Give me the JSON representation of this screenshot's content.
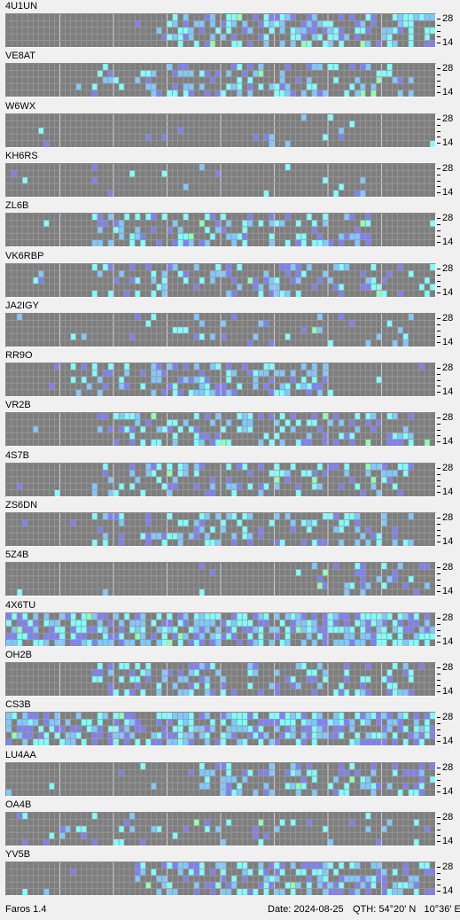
{
  "app": {
    "title": "Faros 1.4"
  },
  "status": {
    "date_label": "Date:",
    "date_value": "2024-08-25",
    "qth_label": "QTH:",
    "qth_value": "54°20' N   10°36' E"
  },
  "band_labels": {
    "top": "28",
    "bottom": "14"
  },
  "colors": {
    "grid_bg": "#7e7e7e",
    "grid_line": "#9a9a9a",
    "major_line": "#c8c8c8",
    "signal_weak": "#8080f0",
    "signal_mid": "#80c8ff",
    "signal_strong": "#80ffff",
    "signal_peak": "#90ffb0"
  },
  "beacons": [
    {
      "callsign": "4U1UN",
      "density": 0.55,
      "seed": 11,
      "active_from": 0.35,
      "active_to": 1.0
    },
    {
      "callsign": "VE8AT",
      "density": 0.3,
      "seed": 23,
      "active_from": 0.2,
      "active_to": 0.95
    },
    {
      "callsign": "W6WX",
      "density": 0.1,
      "seed": 37,
      "active_from": 0.55,
      "active_to": 0.95
    },
    {
      "callsign": "KH6RS",
      "density": 0.07,
      "seed": 41,
      "active_from": 0.2,
      "active_to": 0.85
    },
    {
      "callsign": "ZL6B",
      "density": 0.35,
      "seed": 53,
      "active_from": 0.2,
      "active_to": 0.85
    },
    {
      "callsign": "VK6RBP",
      "density": 0.3,
      "seed": 67,
      "active_from": 0.2,
      "active_to": 1.0
    },
    {
      "callsign": "JA2IGY",
      "density": 0.12,
      "seed": 71,
      "active_from": 0.25,
      "active_to": 0.95
    },
    {
      "callsign": "RR9O",
      "density": 0.45,
      "seed": 83,
      "active_from": 0.15,
      "active_to": 0.75
    },
    {
      "callsign": "VR2B",
      "density": 0.4,
      "seed": 97,
      "active_from": 0.2,
      "active_to": 0.95
    },
    {
      "callsign": "4S7B",
      "density": 0.3,
      "seed": 101,
      "active_from": 0.2,
      "active_to": 0.95
    },
    {
      "callsign": "ZS6DN",
      "density": 0.3,
      "seed": 113,
      "active_from": 0.2,
      "active_to": 0.95
    },
    {
      "callsign": "5Z4B",
      "density": 0.25,
      "seed": 127,
      "active_from": 0.7,
      "active_to": 1.0
    },
    {
      "callsign": "4X6TU",
      "density": 0.7,
      "seed": 131,
      "active_from": 0.0,
      "active_to": 1.0
    },
    {
      "callsign": "OH2B",
      "density": 0.35,
      "seed": 149,
      "active_from": 0.2,
      "active_to": 0.95
    },
    {
      "callsign": "CS3B",
      "density": 0.6,
      "seed": 157,
      "active_from": 0.0,
      "active_to": 1.0
    },
    {
      "callsign": "LU4AA",
      "density": 0.45,
      "seed": 163,
      "active_from": 0.45,
      "active_to": 1.0
    },
    {
      "callsign": "OA4B",
      "density": 0.12,
      "seed": 179,
      "active_from": 0.0,
      "active_to": 1.0
    },
    {
      "callsign": "YV5B",
      "density": 0.45,
      "seed": 191,
      "active_from": 0.3,
      "active_to": 1.0
    }
  ]
}
